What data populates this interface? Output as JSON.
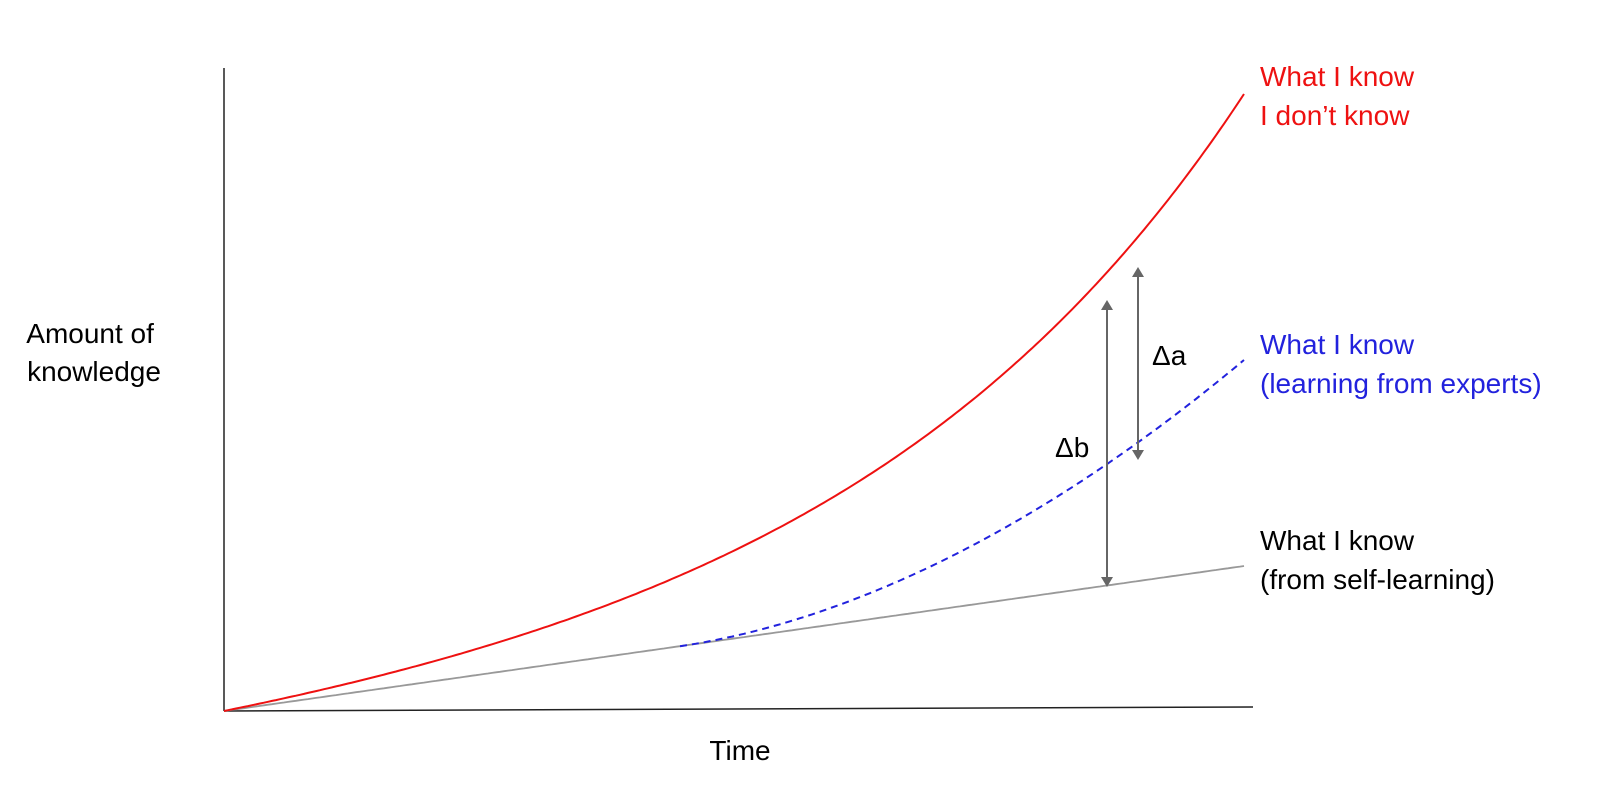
{
  "chart_data": {
    "type": "line",
    "xlabel": "Time",
    "ylabel_lines": [
      "Amount of",
      "knowledge"
    ],
    "colors": {
      "axis": "#222222",
      "know_dont_know": "#ee1111",
      "from_experts": "#2222dd",
      "self_learning": "#999999",
      "arrow": "#666666",
      "text": "#000000"
    },
    "series": [
      {
        "key": "know_dont_know",
        "label_lines": [
          "What I know",
          "I don’t know"
        ],
        "style": "solid"
      },
      {
        "key": "from_experts",
        "label_lines": [
          "What I know",
          "(learning from experts)"
        ],
        "style": "dashed"
      },
      {
        "key": "self_learning",
        "label_lines": [
          "What I know",
          "(from self-learning)"
        ],
        "style": "solid"
      }
    ],
    "annotations": [
      {
        "key": "delta_a",
        "label": "Δa",
        "between": [
          "know_dont_know",
          "from_experts"
        ]
      },
      {
        "key": "delta_b",
        "label": "Δb",
        "between": [
          "know_dont_know",
          "self_learning"
        ]
      }
    ]
  }
}
